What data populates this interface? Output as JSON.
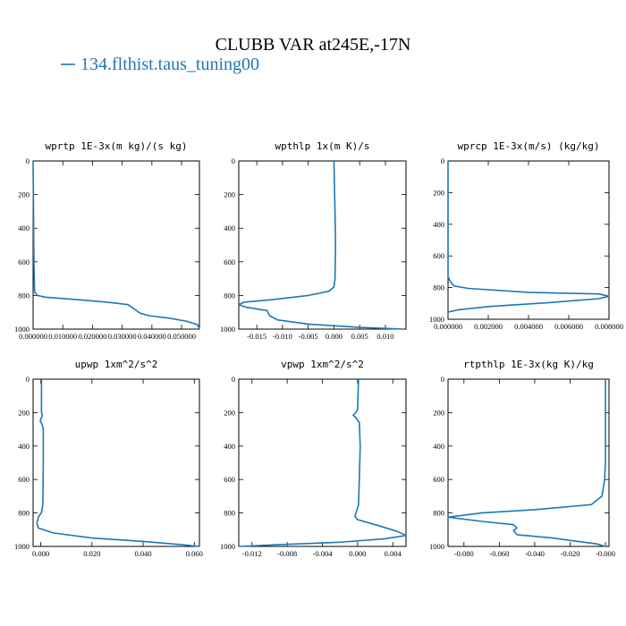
{
  "figure": {
    "title": "CLUBB VAR at245E,-17N",
    "legend": [
      {
        "label": "134.flthist.taus_tuning00",
        "color": "#1f77b4"
      }
    ]
  },
  "chart_data": [
    {
      "type": "line",
      "title": "wprtp  1E-3x(m kg)/(s kg)",
      "xlim": [
        0,
        0.056
      ],
      "ylim": [
        1000,
        0
      ],
      "xticks": [
        0,
        0.01,
        0.02,
        0.03,
        0.04,
        0.05
      ],
      "xtick_labels": [
        "0.000000",
        "0.010000",
        "0.020000",
        "0.030000",
        "0.040000",
        "0.050000"
      ],
      "yticks": [
        0,
        200,
        400,
        600,
        800,
        1000
      ],
      "ytick_labels": [
        "0",
        "200",
        "400",
        "600",
        "800",
        "1000"
      ],
      "series": [
        {
          "x": [
            0,
            0.0003,
            0.0005,
            0.0015,
            0.004,
            0.015,
            0.025,
            0.032,
            0.034,
            0.036,
            0.039,
            0.046,
            0.052,
            0.0555,
            0.056
          ],
          "y": [
            0,
            620,
            780,
            800,
            810,
            825,
            840,
            855,
            880,
            905,
            920,
            935,
            955,
            975,
            1000
          ]
        }
      ]
    },
    {
      "type": "line",
      "title": "wpthlp  1x(m K)/s",
      "xlim": [
        -0.0185,
        0.014
      ],
      "ylim": [
        1000,
        0
      ],
      "xticks": [
        -0.015,
        -0.01,
        -0.005,
        0,
        0.005,
        0.01
      ],
      "xtick_labels": [
        "-0.015",
        "-0.010",
        "-0.005",
        "0.000",
        "0.005",
        "0.010"
      ],
      "yticks": [
        0,
        200,
        400,
        600,
        800,
        1000
      ],
      "ytick_labels": [
        "0",
        "200",
        "400",
        "600",
        "800",
        "1000"
      ],
      "series": [
        {
          "x": [
            0,
            0.0002,
            0.0003,
            0.0002,
            0,
            -0.001,
            -0.005,
            -0.012,
            -0.0175,
            -0.0185,
            -0.017,
            -0.013,
            -0.0125,
            -0.011,
            -0.005,
            0.005,
            0.0135
          ],
          "y": [
            0,
            300,
            500,
            700,
            750,
            775,
            800,
            825,
            840,
            855,
            870,
            890,
            920,
            945,
            970,
            990,
            1000
          ]
        }
      ]
    },
    {
      "type": "line",
      "title": "wprcp  1E-3x(m/s) (kg/kg)",
      "xlim": [
        0,
        0.008
      ],
      "ylim": [
        1000,
        0
      ],
      "xticks": [
        0,
        0.002,
        0.004,
        0.006,
        0.008
      ],
      "xtick_labels": [
        "0.000000",
        "0.002000",
        "0.004000",
        "0.006000",
        "0.008000"
      ],
      "yticks": [
        0,
        200,
        400,
        600,
        800,
        1000
      ],
      "ytick_labels": [
        "0",
        "200",
        "400",
        "600",
        "800",
        "1000"
      ],
      "series": [
        {
          "x": [
            0,
            0,
            0.0001,
            0.0003,
            0.001,
            0.004,
            0.0075,
            0.008,
            0.0075,
            0.005,
            0.002,
            0.0005,
            0
          ],
          "y": [
            0,
            730,
            760,
            790,
            805,
            830,
            840,
            855,
            870,
            895,
            920,
            940,
            955
          ]
        }
      ]
    },
    {
      "type": "line",
      "title": "upwp  1xm^2/s^2",
      "xlim": [
        -0.003,
        0.062
      ],
      "ylim": [
        1000,
        0
      ],
      "xticks": [
        0,
        0.02,
        0.04,
        0.06
      ],
      "xtick_labels": [
        "0.000",
        "0.020",
        "0.040",
        "0.060"
      ],
      "yticks": [
        0,
        200,
        400,
        600,
        800,
        1000
      ],
      "ytick_labels": [
        "0",
        "200",
        "400",
        "600",
        "800",
        "1000"
      ],
      "series": [
        {
          "x": [
            0.0003,
            0.0003,
            0.0006,
            0.0001,
            -0.0002,
            0.0005,
            0.001,
            0.001,
            0.0008,
            0.0002,
            -0.0008,
            -0.0015,
            -0.001,
            0.005,
            0.02,
            0.04,
            0.055,
            0.062
          ],
          "y": [
            0,
            200,
            220,
            235,
            250,
            270,
            300,
            500,
            750,
            800,
            820,
            860,
            890,
            920,
            950,
            970,
            990,
            1000
          ]
        }
      ]
    },
    {
      "type": "line",
      "title": "vpwp  1xm^2/s^2",
      "xlim": [
        -0.0135,
        0.0055
      ],
      "ylim": [
        1000,
        0
      ],
      "xticks": [
        -0.012,
        -0.008,
        -0.004,
        0,
        0.004
      ],
      "xtick_labels": [
        "-0.012",
        "-0.008",
        "-0.004",
        "0.000",
        "0.004"
      ],
      "yticks": [
        0,
        200,
        400,
        600,
        800,
        1000
      ],
      "ytick_labels": [
        "0",
        "200",
        "400",
        "600",
        "800",
        "1000"
      ],
      "series": [
        {
          "x": [
            0.0001,
            0,
            -0.0002,
            -0.0005,
            -0.0002,
            0.0002,
            0.0003,
            0.0002,
            0.0001,
            -0.0003,
            0,
            0.002,
            0.0045,
            0.0055,
            0.003,
            -0.002,
            -0.009,
            -0.0135
          ],
          "y": [
            0,
            180,
            200,
            215,
            230,
            260,
            400,
            600,
            750,
            820,
            840,
            870,
            910,
            935,
            955,
            975,
            990,
            1000
          ]
        }
      ]
    },
    {
      "type": "line",
      "title": "rtpthlp  1E-3x(kg K)/kg",
      "xlim": [
        -0.089,
        0.002
      ],
      "ylim": [
        1000,
        0
      ],
      "xticks": [
        -0.08,
        -0.06,
        -0.04,
        -0.02,
        0
      ],
      "xtick_labels": [
        "-0.080",
        "-0.060",
        "-0.040",
        "-0.020",
        "-0.000"
      ],
      "yticks": [
        0,
        200,
        400,
        600,
        800,
        1000
      ],
      "ytick_labels": [
        "0",
        "200",
        "400",
        "600",
        "800",
        "1000"
      ],
      "series": [
        {
          "x": [
            0,
            0,
            -0.0005,
            -0.002,
            -0.008,
            -0.04,
            -0.07,
            -0.089,
            -0.07,
            -0.052,
            -0.05,
            -0.052,
            -0.05,
            -0.03,
            -0.005,
            0
          ],
          "y": [
            0,
            500,
            600,
            700,
            750,
            780,
            800,
            825,
            850,
            870,
            890,
            905,
            930,
            950,
            985,
            1000
          ]
        }
      ]
    }
  ]
}
